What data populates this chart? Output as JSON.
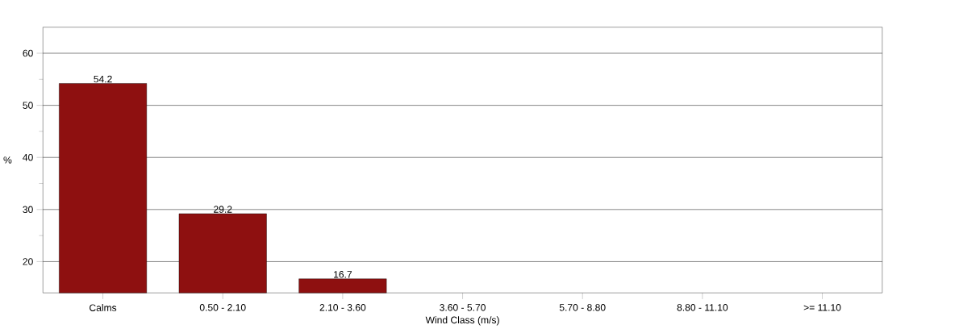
{
  "chart_data": {
    "type": "bar",
    "xlabel": "Wind Class (m/s)",
    "ylabel": "%",
    "categories": [
      "Calms",
      "0.50 - 2.10",
      "2.10 - 3.60",
      "3.60 - 5.70",
      "5.70 - 8.80",
      "8.80 - 11.10",
      ">= 11.10"
    ],
    "values": [
      54.2,
      29.2,
      16.7,
      null,
      null,
      null,
      null
    ],
    "color": "#8e1010",
    "data_labels": true,
    "grid": "y",
    "ylim": [
      14,
      65
    ],
    "yticks": [
      20,
      30,
      40,
      50,
      60
    ]
  }
}
